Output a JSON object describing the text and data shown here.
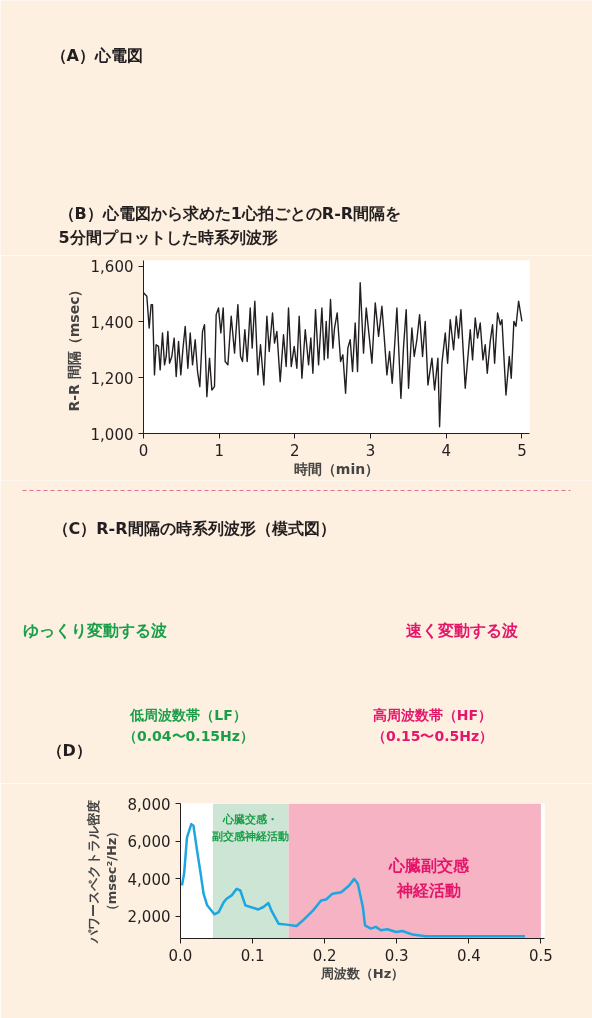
{
  "chart_data": [
    {
      "type": "line",
      "title": "（B）心電図から求めた1心拍ごとのR-R間隔を\n5分間プロットした時系列波形",
      "annotations": [
        "（A）心電図"
      ],
      "xlabel": "時間（min）",
      "ylabel": "R-R 間隔（msec）",
      "x": [
        0.0,
        0.044,
        0.075,
        0.101,
        0.119,
        0.145,
        0.167,
        0.198,
        0.22,
        0.251,
        0.278,
        0.3,
        0.322,
        0.344,
        0.374,
        0.405,
        0.432,
        0.463,
        0.493,
        0.52,
        0.551,
        0.586,
        0.617,
        0.648,
        0.683,
        0.714,
        0.744,
        0.78,
        0.806,
        0.837,
        0.872,
        0.903,
        0.938,
        0.96,
        0.991,
        1.022,
        1.053,
        1.079,
        1.115,
        1.159,
        1.203,
        1.247,
        1.282,
        1.308,
        1.339,
        1.37,
        1.41,
        1.436,
        1.471,
        1.511,
        1.546,
        1.59,
        1.63,
        1.661,
        1.705,
        1.731,
        1.762,
        1.806,
        1.85,
        1.885,
        1.916,
        1.952,
        1.991,
        2.026,
        2.057,
        2.093,
        2.137,
        2.181,
        2.211,
        2.238,
        2.273,
        2.313,
        2.357,
        2.388,
        2.414,
        2.436,
        2.471,
        2.502,
        2.524,
        2.559,
        2.604,
        2.634,
        2.67,
        2.7,
        2.731,
        2.762,
        2.797,
        2.828,
        2.863,
        2.907,
        2.943,
        2.982,
        3.018,
        3.062,
        3.106,
        3.15,
        3.185,
        3.216,
        3.251,
        3.286,
        3.317,
        3.348,
        3.401,
        3.436,
        3.471,
        3.502,
        3.546,
        3.577,
        3.612,
        3.648,
        3.687,
        3.722,
        3.758,
        3.811,
        3.846,
        3.89,
        3.912,
        3.943,
        3.987,
        4.018,
        4.053,
        4.097,
        4.132,
        4.163,
        4.194,
        4.251,
        4.317,
        4.348,
        4.383,
        4.414,
        4.449,
        4.485,
        4.515,
        4.542,
        4.581,
        4.612,
        4.639,
        4.678,
        4.714,
        4.736,
        4.789,
        4.833,
        4.859,
        4.894,
        4.921,
        4.956,
        5.0
      ],
      "series": [
        {
          "color": "#231f20",
          "values": [
            1504,
            1492,
            1378,
            1462,
            1462,
            1210,
            1318,
            1312,
            1228,
            1360,
            1246,
            1276,
            1366,
            1252,
            1276,
            1342,
            1204,
            1330,
            1210,
            1300,
            1384,
            1234,
            1360,
            1246,
            1336,
            1222,
            1168,
            1366,
            1390,
            1132,
            1270,
            1156,
            1168,
            1426,
            1450,
            1360,
            1450,
            1258,
            1246,
            1420,
            1288,
            1462,
            1276,
            1258,
            1372,
            1258,
            1450,
            1306,
            1474,
            1210,
            1318,
            1174,
            1420,
            1294,
            1432,
            1324,
            1366,
            1186,
            1354,
            1240,
            1450,
            1240,
            1312,
            1234,
            1420,
            1198,
            1372,
            1246,
            1342,
            1216,
            1444,
            1246,
            1450,
            1264,
            1402,
            1270,
            1480,
            1306,
            1378,
            1432,
            1258,
            1282,
            1144,
            1306,
            1336,
            1222,
            1396,
            1222,
            1540,
            1288,
            1450,
            1348,
            1252,
            1468,
            1348,
            1456,
            1330,
            1210,
            1294,
            1180,
            1312,
            1450,
            1126,
            1312,
            1444,
            1162,
            1378,
            1276,
            1336,
            1426,
            1276,
            1402,
            1174,
            1270,
            1156,
            1270,
            1024,
            1252,
            1360,
            1252,
            1408,
            1300,
            1420,
            1342,
            1444,
            1162,
            1372,
            1264,
            1414,
            1342,
            1396,
            1264,
            1318,
            1216,
            1330,
            1390,
            1252,
            1432,
            1390,
            1408,
            1138,
            1276,
            1198,
            1402,
            1384,
            1474,
            1402
          ]
        }
      ],
      "xlim": [
        0,
        5.1
      ],
      "ylim": [
        1000,
        1620
      ],
      "xticks": [
        0,
        1,
        2,
        3,
        4,
        5
      ],
      "yticks": [
        {
          "value": 1000,
          "label": "1,000"
        },
        {
          "value": 1200,
          "label": "1,200"
        },
        {
          "value": 1400,
          "label": "1,400"
        },
        {
          "value": 1600,
          "label": "1,600"
        }
      ]
    },
    {
      "type": "line",
      "title": "（D）",
      "annotations": [
        "（C）R-R間隔の時系列波形（模式図）",
        "ゆっくり変動する波",
        "速く変動する波",
        "低周波数帯（LF）（0.04〜0.15Hz）",
        "高周波数帯（HF）（0.15〜0.5Hz）"
      ],
      "xlabel": "周波数（Hz）",
      "ylabel": "パワースペクトラル密度（msec²/Hz）",
      "x": [
        0.002,
        0.005,
        0.009,
        0.015,
        0.018,
        0.023,
        0.028,
        0.032,
        0.037,
        0.047,
        0.053,
        0.06,
        0.064,
        0.071,
        0.078,
        0.083,
        0.09,
        0.097,
        0.108,
        0.115,
        0.122,
        0.126,
        0.136,
        0.147,
        0.161,
        0.17,
        0.184,
        0.195,
        0.202,
        0.211,
        0.223,
        0.234,
        0.241,
        0.246,
        0.253,
        0.256,
        0.264,
        0.271,
        0.278,
        0.287,
        0.299,
        0.308,
        0.322,
        0.34,
        0.386,
        0.432,
        0.478
      ],
      "series": [
        {
          "color": "#1ea6e0",
          "values": [
            3630,
            4250,
            6190,
            6900,
            6810,
            5490,
            4250,
            3190,
            2570,
            2090,
            2210,
            2740,
            2920,
            3100,
            3450,
            3360,
            2570,
            2480,
            2350,
            2480,
            2690,
            2300,
            1590,
            1540,
            1470,
            1770,
            2300,
            2830,
            2880,
            3190,
            3270,
            3630,
            3980,
            3720,
            2480,
            1500,
            1330,
            1420,
            1240,
            1290,
            1150,
            1200,
            1010,
            920,
            920,
            920,
            920
          ]
        }
      ],
      "xlim": [
        0,
        0.505
      ],
      "ylim": [
        800,
        8000
      ],
      "xticks": [
        {
          "value": 0,
          "label": "0.0"
        },
        0.1,
        0.2,
        0.3,
        0.4,
        0.5
      ],
      "yticks": [
        {
          "value": 2000,
          "label": "2,000"
        },
        {
          "value": 4000,
          "label": "4,000"
        },
        {
          "value": 6000,
          "label": "6,000"
        },
        {
          "value": 8000,
          "label": "8,000"
        }
      ],
      "bands": [
        {
          "axis": "x",
          "from": 0.045,
          "to": 0.15,
          "label": "心臓交感・副交感神経活動",
          "color": "#cde5d4"
        },
        {
          "axis": "x",
          "from": 0.15,
          "to": 0.5,
          "label": "心臓副交感神経活動",
          "color": "#f5b3c3"
        }
      ]
    }
  ]
}
